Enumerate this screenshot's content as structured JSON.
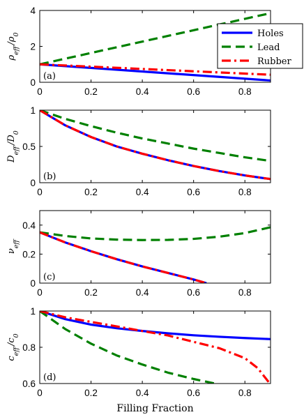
{
  "chart_data": [
    {
      "type": "line",
      "panel_label": "(a)",
      "ylabel": "ρ_eff / ρ_0",
      "xlim": [
        0,
        0.9
      ],
      "ylim": [
        0,
        4
      ],
      "xticks": [
        "0",
        "0.2",
        "0.4",
        "0.6",
        "0.8"
      ],
      "yticks": [
        "0",
        "2",
        "4"
      ],
      "grid": false,
      "legend_position": "top-right",
      "series": [
        {
          "name": "Holes",
          "style": "solid",
          "color": "#0000ff",
          "x": [
            0,
            0.9
          ],
          "y": [
            1.0,
            0.1
          ]
        },
        {
          "name": "Lead",
          "style": "dashed",
          "color": "#008000",
          "x": [
            0,
            0.9
          ],
          "y": [
            1.0,
            3.85
          ]
        },
        {
          "name": "Rubber",
          "style": "dashdot",
          "color": "#ff0000",
          "x": [
            0,
            0.9
          ],
          "y": [
            1.0,
            0.42
          ]
        }
      ]
    },
    {
      "type": "line",
      "panel_label": "(b)",
      "ylabel": "D_eff / D_0",
      "xlim": [
        0,
        0.9
      ],
      "ylim": [
        0,
        1
      ],
      "xticks": [
        "0",
        "0.2",
        "0.4",
        "0.6",
        "0.8"
      ],
      "yticks": [
        "0",
        "0.5",
        "1"
      ],
      "grid": false,
      "series": [
        {
          "name": "Holes",
          "style": "solid",
          "color": "#0000ff",
          "x": [
            0,
            0.1,
            0.2,
            0.3,
            0.4,
            0.5,
            0.6,
            0.7,
            0.8,
            0.9
          ],
          "y": [
            1.0,
            0.79,
            0.63,
            0.5,
            0.4,
            0.31,
            0.23,
            0.16,
            0.1,
            0.05
          ]
        },
        {
          "name": "Lead",
          "style": "dashed",
          "color": "#008000",
          "x": [
            0,
            0.1,
            0.2,
            0.3,
            0.4,
            0.5,
            0.6,
            0.7,
            0.8,
            0.9
          ],
          "y": [
            1.0,
            0.88,
            0.78,
            0.69,
            0.61,
            0.54,
            0.47,
            0.41,
            0.35,
            0.3
          ]
        },
        {
          "name": "Rubber",
          "style": "dashdot",
          "color": "#ff0000",
          "x": [
            0,
            0.1,
            0.2,
            0.3,
            0.4,
            0.5,
            0.6,
            0.7,
            0.8,
            0.9
          ],
          "y": [
            1.0,
            0.79,
            0.63,
            0.5,
            0.4,
            0.31,
            0.23,
            0.16,
            0.1,
            0.05
          ]
        }
      ]
    },
    {
      "type": "line",
      "panel_label": "(c)",
      "ylabel": "ν_eff",
      "xlim": [
        0,
        0.9
      ],
      "ylim": [
        0,
        0.5
      ],
      "xticks": [
        "0",
        "0.2",
        "0.4",
        "0.6",
        "0.8"
      ],
      "yticks": [
        "0",
        "0.2",
        "0.4"
      ],
      "grid": false,
      "series": [
        {
          "name": "Holes",
          "style": "solid",
          "color": "#0000ff",
          "x": [
            0,
            0.1,
            0.2,
            0.3,
            0.4,
            0.5,
            0.6,
            0.65
          ],
          "y": [
            0.35,
            0.28,
            0.22,
            0.165,
            0.115,
            0.07,
            0.025,
            0.0
          ]
        },
        {
          "name": "Lead",
          "style": "dashed",
          "color": "#008000",
          "x": [
            0,
            0.1,
            0.2,
            0.3,
            0.4,
            0.5,
            0.6,
            0.7,
            0.8,
            0.9
          ],
          "y": [
            0.35,
            0.325,
            0.308,
            0.3,
            0.297,
            0.298,
            0.305,
            0.32,
            0.345,
            0.385
          ]
        },
        {
          "name": "Rubber",
          "style": "dashdot",
          "color": "#ff0000",
          "x": [
            0,
            0.1,
            0.2,
            0.3,
            0.4,
            0.5,
            0.6,
            0.65
          ],
          "y": [
            0.35,
            0.28,
            0.22,
            0.165,
            0.115,
            0.07,
            0.025,
            0.0
          ]
        }
      ]
    },
    {
      "type": "line",
      "panel_label": "(d)",
      "ylabel": "c_eff / c_0",
      "xlabel": "Filling Fraction",
      "xlim": [
        0,
        0.9
      ],
      "ylim": [
        0.6,
        1
      ],
      "xticks": [
        "0",
        "0.2",
        "0.4",
        "0.6",
        "0.8"
      ],
      "yticks": [
        "0.6",
        "0.8",
        "1"
      ],
      "grid": false,
      "series": [
        {
          "name": "Holes",
          "style": "solid",
          "color": "#0000ff",
          "x": [
            0,
            0.1,
            0.2,
            0.3,
            0.4,
            0.5,
            0.6,
            0.7,
            0.8,
            0.9
          ],
          "y": [
            1.0,
            0.955,
            0.925,
            0.905,
            0.89,
            0.877,
            0.866,
            0.858,
            0.851,
            0.845
          ]
        },
        {
          "name": "Lead",
          "style": "dashed",
          "color": "#008000",
          "x": [
            0,
            0.1,
            0.2,
            0.3,
            0.4,
            0.5,
            0.6,
            0.7
          ],
          "y": [
            1.0,
            0.9,
            0.82,
            0.755,
            0.705,
            0.66,
            0.625,
            0.595
          ]
        },
        {
          "name": "Rubber",
          "style": "dashdot",
          "color": "#ff0000",
          "x": [
            0,
            0.1,
            0.2,
            0.3,
            0.4,
            0.5,
            0.6,
            0.7,
            0.8,
            0.85,
            0.9
          ],
          "y": [
            1.0,
            0.965,
            0.94,
            0.915,
            0.89,
            0.865,
            0.83,
            0.795,
            0.74,
            0.685,
            0.595
          ]
        }
      ]
    }
  ],
  "legend": {
    "entries": [
      "Holes",
      "Lead",
      "Rubber"
    ]
  }
}
